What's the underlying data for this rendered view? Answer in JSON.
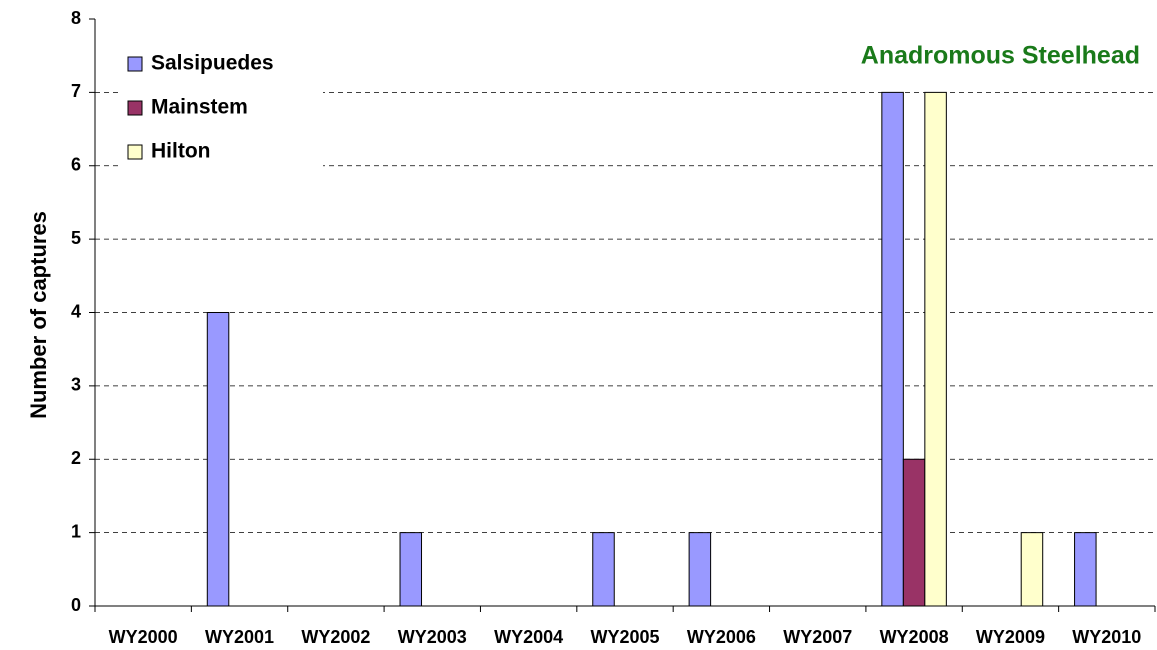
{
  "chart_data": {
    "type": "bar",
    "title": "Anadromous Steelhead",
    "ylabel": "Number of captures",
    "categories": [
      "WY2000",
      "WY2001",
      "WY2002",
      "WY2003",
      "WY2004",
      "WY2005",
      "WY2006",
      "WY2007",
      "WY2008",
      "WY2009",
      "WY2010"
    ],
    "series": [
      {
        "name": "Salsipuedes",
        "color": "#9999ff",
        "values": [
          0,
          4,
          0,
          1,
          0,
          1,
          1,
          0,
          7,
          0,
          1
        ]
      },
      {
        "name": "Mainstem",
        "color": "#993366",
        "values": [
          0,
          0,
          0,
          0,
          0,
          0,
          0,
          0,
          2,
          0,
          0
        ]
      },
      {
        "name": "Hilton",
        "color": "#ffffcc",
        "values": [
          0,
          0,
          0,
          0,
          0,
          0,
          0,
          0,
          7,
          1,
          0
        ]
      }
    ],
    "ylim": [
      0,
      8
    ],
    "yticks": [
      0,
      1,
      2,
      3,
      4,
      5,
      6,
      7,
      8
    ],
    "grid": true,
    "legend": "upper left"
  }
}
